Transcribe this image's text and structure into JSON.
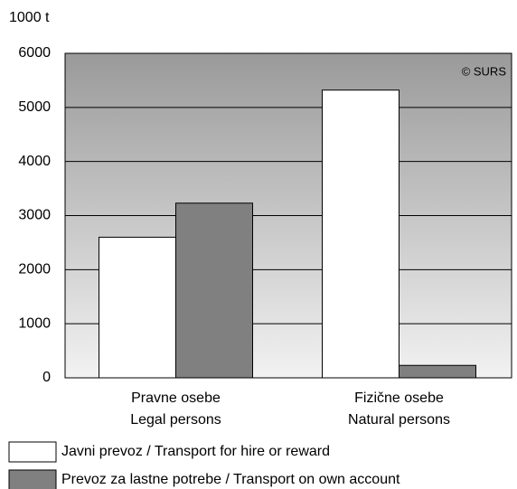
{
  "chart_data": {
    "type": "bar",
    "y_axis_label": "1000 t",
    "annotation": "© SURS",
    "categories": [
      "Pravne osebe\nLegal persons",
      "Fizične osebe\nNatural persons"
    ],
    "series": [
      {
        "name": "Javni prevoz / Transport for hire or reward",
        "color": "#ffffff",
        "values": [
          2600,
          5320
        ]
      },
      {
        "name": "Prevoz za lastne  potrebe / Transport on own account",
        "color": "#808080",
        "values": [
          3230,
          230
        ]
      }
    ],
    "ylim": [
      0,
      6000
    ],
    "yticks": [
      0,
      1000,
      2000,
      3000,
      4000,
      5000,
      6000
    ],
    "grid": true
  }
}
